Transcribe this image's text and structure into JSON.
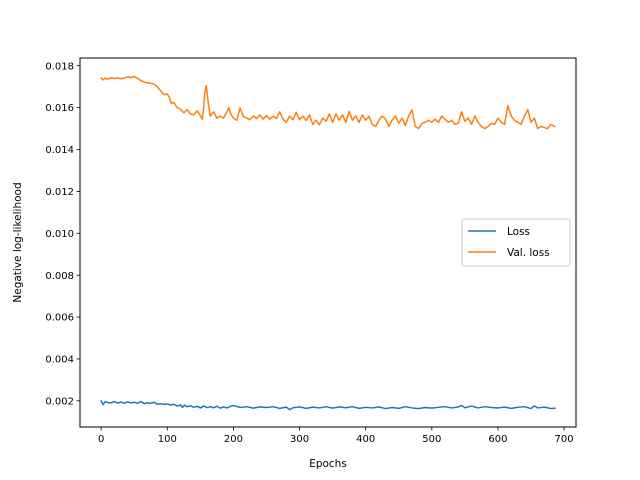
{
  "chart_data": {
    "type": "line",
    "title": "",
    "xlabel": "Epochs",
    "ylabel": "Negative log-likelihood",
    "xlim": [
      -32,
      718
    ],
    "ylim": [
      0.00075,
      0.01837
    ],
    "xticks": [
      0,
      100,
      200,
      300,
      400,
      500,
      600,
      700
    ],
    "xtick_labels": [
      "0",
      "100",
      "200",
      "300",
      "400",
      "500",
      "600",
      "700"
    ],
    "yticks": [
      0.002,
      0.004,
      0.006,
      0.008,
      0.01,
      0.012,
      0.014,
      0.016,
      0.018
    ],
    "ytick_labels": [
      "0.002",
      "0.004",
      "0.006",
      "0.008",
      "0.010",
      "0.012",
      "0.014",
      "0.016",
      "0.018"
    ],
    "grid": false,
    "legend": {
      "placement": "center-right"
    },
    "series": [
      {
        "name": "Loss",
        "color": "#1f77b4",
        "x": [
          0,
          3,
          6,
          10,
          15,
          20,
          25,
          30,
          35,
          40,
          45,
          50,
          55,
          60,
          65,
          70,
          75,
          80,
          85,
          90,
          95,
          100,
          105,
          110,
          115,
          120,
          123,
          126,
          130,
          135,
          140,
          145,
          150,
          155,
          160,
          165,
          170,
          175,
          180,
          185,
          190,
          195,
          200,
          210,
          220,
          230,
          240,
          250,
          260,
          270,
          280,
          285,
          290,
          300,
          310,
          320,
          330,
          340,
          350,
          360,
          370,
          380,
          390,
          400,
          410,
          420,
          430,
          440,
          450,
          460,
          470,
          480,
          490,
          500,
          510,
          520,
          530,
          540,
          545,
          550,
          560,
          570,
          580,
          590,
          600,
          610,
          620,
          630,
          640,
          650,
          655,
          660,
          670,
          680,
          686
        ],
        "y": [
          0.00199,
          0.00182,
          0.00196,
          0.00192,
          0.0019,
          0.00197,
          0.00189,
          0.00194,
          0.00188,
          0.00195,
          0.0019,
          0.00193,
          0.00188,
          0.00197,
          0.00186,
          0.00191,
          0.00188,
          0.00193,
          0.00184,
          0.00186,
          0.00183,
          0.00185,
          0.0018,
          0.00183,
          0.00175,
          0.0018,
          0.00168,
          0.0018,
          0.00172,
          0.00176,
          0.00169,
          0.00174,
          0.00166,
          0.00175,
          0.00168,
          0.00172,
          0.00167,
          0.00174,
          0.00165,
          0.00171,
          0.00166,
          0.00173,
          0.00178,
          0.00168,
          0.00172,
          0.00165,
          0.00171,
          0.00168,
          0.00172,
          0.00164,
          0.0017,
          0.00158,
          0.00167,
          0.00171,
          0.00164,
          0.0017,
          0.00166,
          0.00172,
          0.00165,
          0.00171,
          0.00167,
          0.00172,
          0.00164,
          0.00169,
          0.00166,
          0.00171,
          0.00163,
          0.00168,
          0.00164,
          0.00172,
          0.00166,
          0.00163,
          0.00168,
          0.00165,
          0.00169,
          0.00172,
          0.00166,
          0.00171,
          0.00178,
          0.00167,
          0.00175,
          0.00166,
          0.00172,
          0.00168,
          0.00166,
          0.0017,
          0.00164,
          0.00169,
          0.00172,
          0.00163,
          0.00176,
          0.00166,
          0.0017,
          0.00163,
          0.00165
        ]
      },
      {
        "name": "Val. loss",
        "color": "#ff7f0e",
        "x": [
          0,
          3,
          6,
          10,
          15,
          20,
          25,
          30,
          35,
          40,
          45,
          50,
          55,
          60,
          65,
          70,
          75,
          80,
          85,
          90,
          95,
          100,
          103,
          106,
          110,
          115,
          120,
          125,
          130,
          135,
          140,
          145,
          150,
          153,
          155,
          157,
          159,
          162,
          165,
          170,
          175,
          180,
          185,
          190,
          193,
          196,
          200,
          205,
          210,
          215,
          220,
          225,
          230,
          235,
          240,
          245,
          250,
          255,
          260,
          265,
          270,
          275,
          280,
          285,
          290,
          295,
          300,
          305,
          310,
          315,
          320,
          325,
          330,
          335,
          340,
          345,
          350,
          355,
          360,
          365,
          370,
          375,
          380,
          385,
          390,
          395,
          400,
          405,
          410,
          415,
          420,
          425,
          430,
          435,
          440,
          445,
          450,
          455,
          460,
          465,
          470,
          475,
          480,
          485,
          490,
          495,
          500,
          505,
          510,
          515,
          520,
          525,
          530,
          535,
          540,
          545,
          550,
          555,
          560,
          565,
          570,
          575,
          580,
          585,
          590,
          595,
          600,
          605,
          610,
          615,
          620,
          625,
          630,
          635,
          640,
          645,
          650,
          655,
          660,
          665,
          670,
          675,
          680,
          686
        ],
        "y": [
          0.01741,
          0.01732,
          0.01741,
          0.01736,
          0.01742,
          0.01739,
          0.01742,
          0.01738,
          0.01741,
          0.01748,
          0.01743,
          0.01749,
          0.0174,
          0.01729,
          0.01722,
          0.01718,
          0.01716,
          0.01712,
          0.017,
          0.0168,
          0.01662,
          0.01665,
          0.0165,
          0.0162,
          0.01625,
          0.016,
          0.01592,
          0.01575,
          0.0159,
          0.0157,
          0.01565,
          0.01585,
          0.01562,
          0.01545,
          0.016,
          0.0168,
          0.01705,
          0.0162,
          0.0156,
          0.0158,
          0.0155,
          0.0156,
          0.0155,
          0.0158,
          0.016,
          0.0157,
          0.0155,
          0.0154,
          0.01598,
          0.01558,
          0.0155,
          0.01542,
          0.0156,
          0.01548,
          0.01565,
          0.01545,
          0.01562,
          0.01545,
          0.0156,
          0.01548,
          0.0158,
          0.01545,
          0.0153,
          0.0156,
          0.01542,
          0.01578,
          0.01542,
          0.0156,
          0.01538,
          0.01565,
          0.0152,
          0.0154,
          0.01518,
          0.0155,
          0.01535,
          0.0157,
          0.0153,
          0.0157,
          0.0154,
          0.01565,
          0.0153,
          0.01582,
          0.0154,
          0.0156,
          0.0153,
          0.01565,
          0.0154,
          0.01558,
          0.0152,
          0.0151,
          0.0154,
          0.0156,
          0.01545,
          0.0151,
          0.0154,
          0.0156,
          0.01525,
          0.0155,
          0.01515,
          0.0156,
          0.0159,
          0.0151,
          0.015,
          0.01525,
          0.0153,
          0.0154,
          0.0153,
          0.01545,
          0.0153,
          0.0156,
          0.01545,
          0.0153,
          0.0154,
          0.0152,
          0.01525,
          0.0158,
          0.01535,
          0.0155,
          0.0152,
          0.0156,
          0.0153,
          0.0151,
          0.015,
          0.0151,
          0.01525,
          0.0152,
          0.0155,
          0.0153,
          0.0152,
          0.0161,
          0.0156,
          0.0154,
          0.0153,
          0.0152,
          0.0156,
          0.0159,
          0.0153,
          0.0155,
          0.015,
          0.0151,
          0.01505,
          0.015,
          0.0152,
          0.0151
        ]
      }
    ]
  }
}
